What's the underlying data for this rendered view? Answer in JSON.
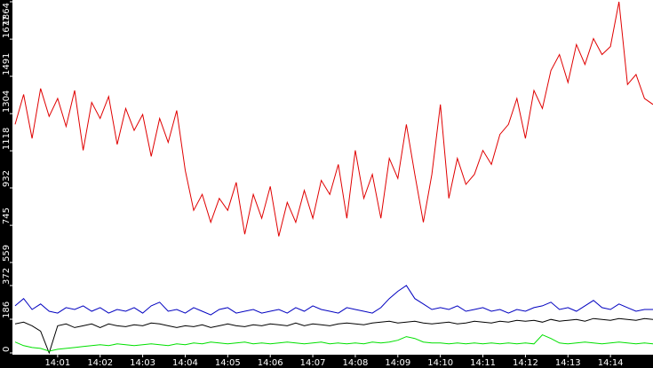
{
  "chart_data": [
    {
      "type": "line",
      "x": [
        0,
        0.2,
        0.4,
        0.6,
        0.8,
        1,
        1.2,
        1.4,
        1.6,
        1.8,
        2,
        2.2,
        2.4,
        2.6,
        2.8,
        3,
        3.2,
        3.4,
        3.6,
        3.8,
        4,
        4.2,
        4.4,
        4.6,
        4.8,
        5,
        5.2,
        5.4,
        5.6,
        5.8,
        6,
        6.2,
        6.4,
        6.6,
        6.8,
        7,
        7.2,
        7.4,
        7.6,
        7.8,
        8,
        8.2,
        8.4,
        8.6,
        8.8,
        9,
        9.2,
        9.4,
        9.6,
        9.8,
        10,
        10.2,
        10.4,
        10.6,
        10.8,
        11,
        11.2,
        11.4,
        11.6,
        11.8,
        12,
        12.2,
        12.4,
        12.6,
        12.8,
        13,
        13.2,
        13.4,
        13.6,
        13.8,
        14,
        14.2,
        14.4,
        14.6,
        14.8,
        15
      ],
      "xlim": [
        0,
        15
      ],
      "ylim": [
        559,
        1864
      ],
      "yticks": [
        559,
        745,
        932,
        1118,
        1304,
        1491,
        1677,
        1864
      ],
      "series": [
        {
          "color": "#e00000",
          "values": [
            1250,
            1400,
            1180,
            1430,
            1290,
            1380,
            1240,
            1420,
            1120,
            1360,
            1280,
            1390,
            1150,
            1330,
            1220,
            1300,
            1090,
            1280,
            1160,
            1320,
            1020,
            820,
            900,
            760,
            880,
            820,
            960,
            700,
            900,
            780,
            940,
            690,
            860,
            760,
            920,
            780,
            970,
            900,
            1050,
            780,
            1120,
            880,
            1000,
            780,
            1080,
            980,
            1250,
            1000,
            760,
            1000,
            1350,
            880,
            1080,
            950,
            1000,
            1120,
            1050,
            1200,
            1250,
            1380,
            1180,
            1420,
            1330,
            1520,
            1600,
            1460,
            1650,
            1550,
            1680,
            1600,
            1640,
            1864,
            1450,
            1500,
            1380,
            1350
          ]
        }
      ]
    },
    {
      "type": "line",
      "x": [
        0,
        0.2,
        0.4,
        0.6,
        0.8,
        1,
        1.2,
        1.4,
        1.6,
        1.8,
        2,
        2.2,
        2.4,
        2.6,
        2.8,
        3,
        3.2,
        3.4,
        3.6,
        3.8,
        4,
        4.2,
        4.4,
        4.6,
        4.8,
        5,
        5.2,
        5.4,
        5.6,
        5.8,
        6,
        6.2,
        6.4,
        6.6,
        6.8,
        7,
        7.2,
        7.4,
        7.6,
        7.8,
        8,
        8.2,
        8.4,
        8.6,
        8.8,
        9,
        9.2,
        9.4,
        9.6,
        9.8,
        10,
        10.2,
        10.4,
        10.6,
        10.8,
        11,
        11.2,
        11.4,
        11.6,
        11.8,
        12,
        12.2,
        12.4,
        12.6,
        12.8,
        13,
        13.2,
        13.4,
        13.6,
        13.8,
        14,
        14.2,
        14.4,
        14.6,
        14.8,
        15
      ],
      "xlim": [
        0,
        15
      ],
      "xticks": [
        {
          "value": 1,
          "label": "14:01"
        },
        {
          "value": 2,
          "label": "14:02"
        },
        {
          "value": 3,
          "label": "14:03"
        },
        {
          "value": 4,
          "label": "14:04"
        },
        {
          "value": 5,
          "label": "14:05"
        },
        {
          "value": 6,
          "label": "14:06"
        },
        {
          "value": 7,
          "label": "14:07"
        },
        {
          "value": 8,
          "label": "14:08"
        },
        {
          "value": 9,
          "label": "14:09"
        },
        {
          "value": 10,
          "label": "14:10"
        },
        {
          "value": 11,
          "label": "14:11"
        },
        {
          "value": 12,
          "label": "14:12"
        },
        {
          "value": 13,
          "label": "14:13"
        },
        {
          "value": 14,
          "label": "14:14"
        }
      ],
      "ylim": [
        0,
        372
      ],
      "yticks": [
        0,
        186,
        372
      ],
      "series": [
        {
          "color": "#0000c0",
          "values": [
            260,
            300,
            240,
            270,
            230,
            220,
            250,
            240,
            260,
            230,
            250,
            220,
            240,
            230,
            250,
            220,
            260,
            280,
            230,
            240,
            220,
            250,
            230,
            210,
            240,
            250,
            220,
            230,
            240,
            220,
            230,
            240,
            220,
            250,
            230,
            260,
            240,
            230,
            220,
            250,
            240,
            230,
            220,
            250,
            300,
            340,
            372,
            300,
            270,
            240,
            250,
            240,
            260,
            230,
            240,
            250,
            230,
            240,
            220,
            240,
            230,
            250,
            260,
            280,
            240,
            250,
            230,
            260,
            290,
            250,
            240,
            270,
            250,
            230,
            240,
            240
          ]
        },
        {
          "color": "#000000",
          "values": [
            160,
            170,
            150,
            120,
            0,
            150,
            160,
            140,
            150,
            160,
            140,
            160,
            150,
            145,
            155,
            150,
            165,
            160,
            150,
            140,
            150,
            145,
            155,
            140,
            150,
            160,
            150,
            145,
            155,
            150,
            160,
            155,
            150,
            165,
            150,
            160,
            155,
            150,
            160,
            165,
            160,
            155,
            165,
            170,
            175,
            165,
            170,
            175,
            165,
            160,
            165,
            170,
            160,
            165,
            175,
            170,
            165,
            175,
            170,
            180,
            175,
            180,
            170,
            185,
            175,
            180,
            185,
            175,
            190,
            185,
            180,
            190,
            185,
            180,
            190,
            185
          ]
        },
        {
          "color": "#00e000",
          "values": [
            60,
            40,
            30,
            25,
            10,
            20,
            25,
            30,
            35,
            40,
            45,
            40,
            50,
            45,
            40,
            45,
            50,
            45,
            40,
            50,
            45,
            55,
            50,
            60,
            55,
            50,
            55,
            60,
            50,
            55,
            50,
            55,
            60,
            55,
            50,
            55,
            60,
            50,
            55,
            50,
            55,
            50,
            60,
            55,
            60,
            70,
            90,
            80,
            60,
            55,
            55,
            50,
            55,
            50,
            55,
            50,
            55,
            50,
            55,
            50,
            55,
            50,
            100,
            80,
            55,
            50,
            55,
            60,
            55,
            50,
            55,
            60,
            55,
            50,
            55,
            50
          ]
        }
      ]
    }
  ]
}
